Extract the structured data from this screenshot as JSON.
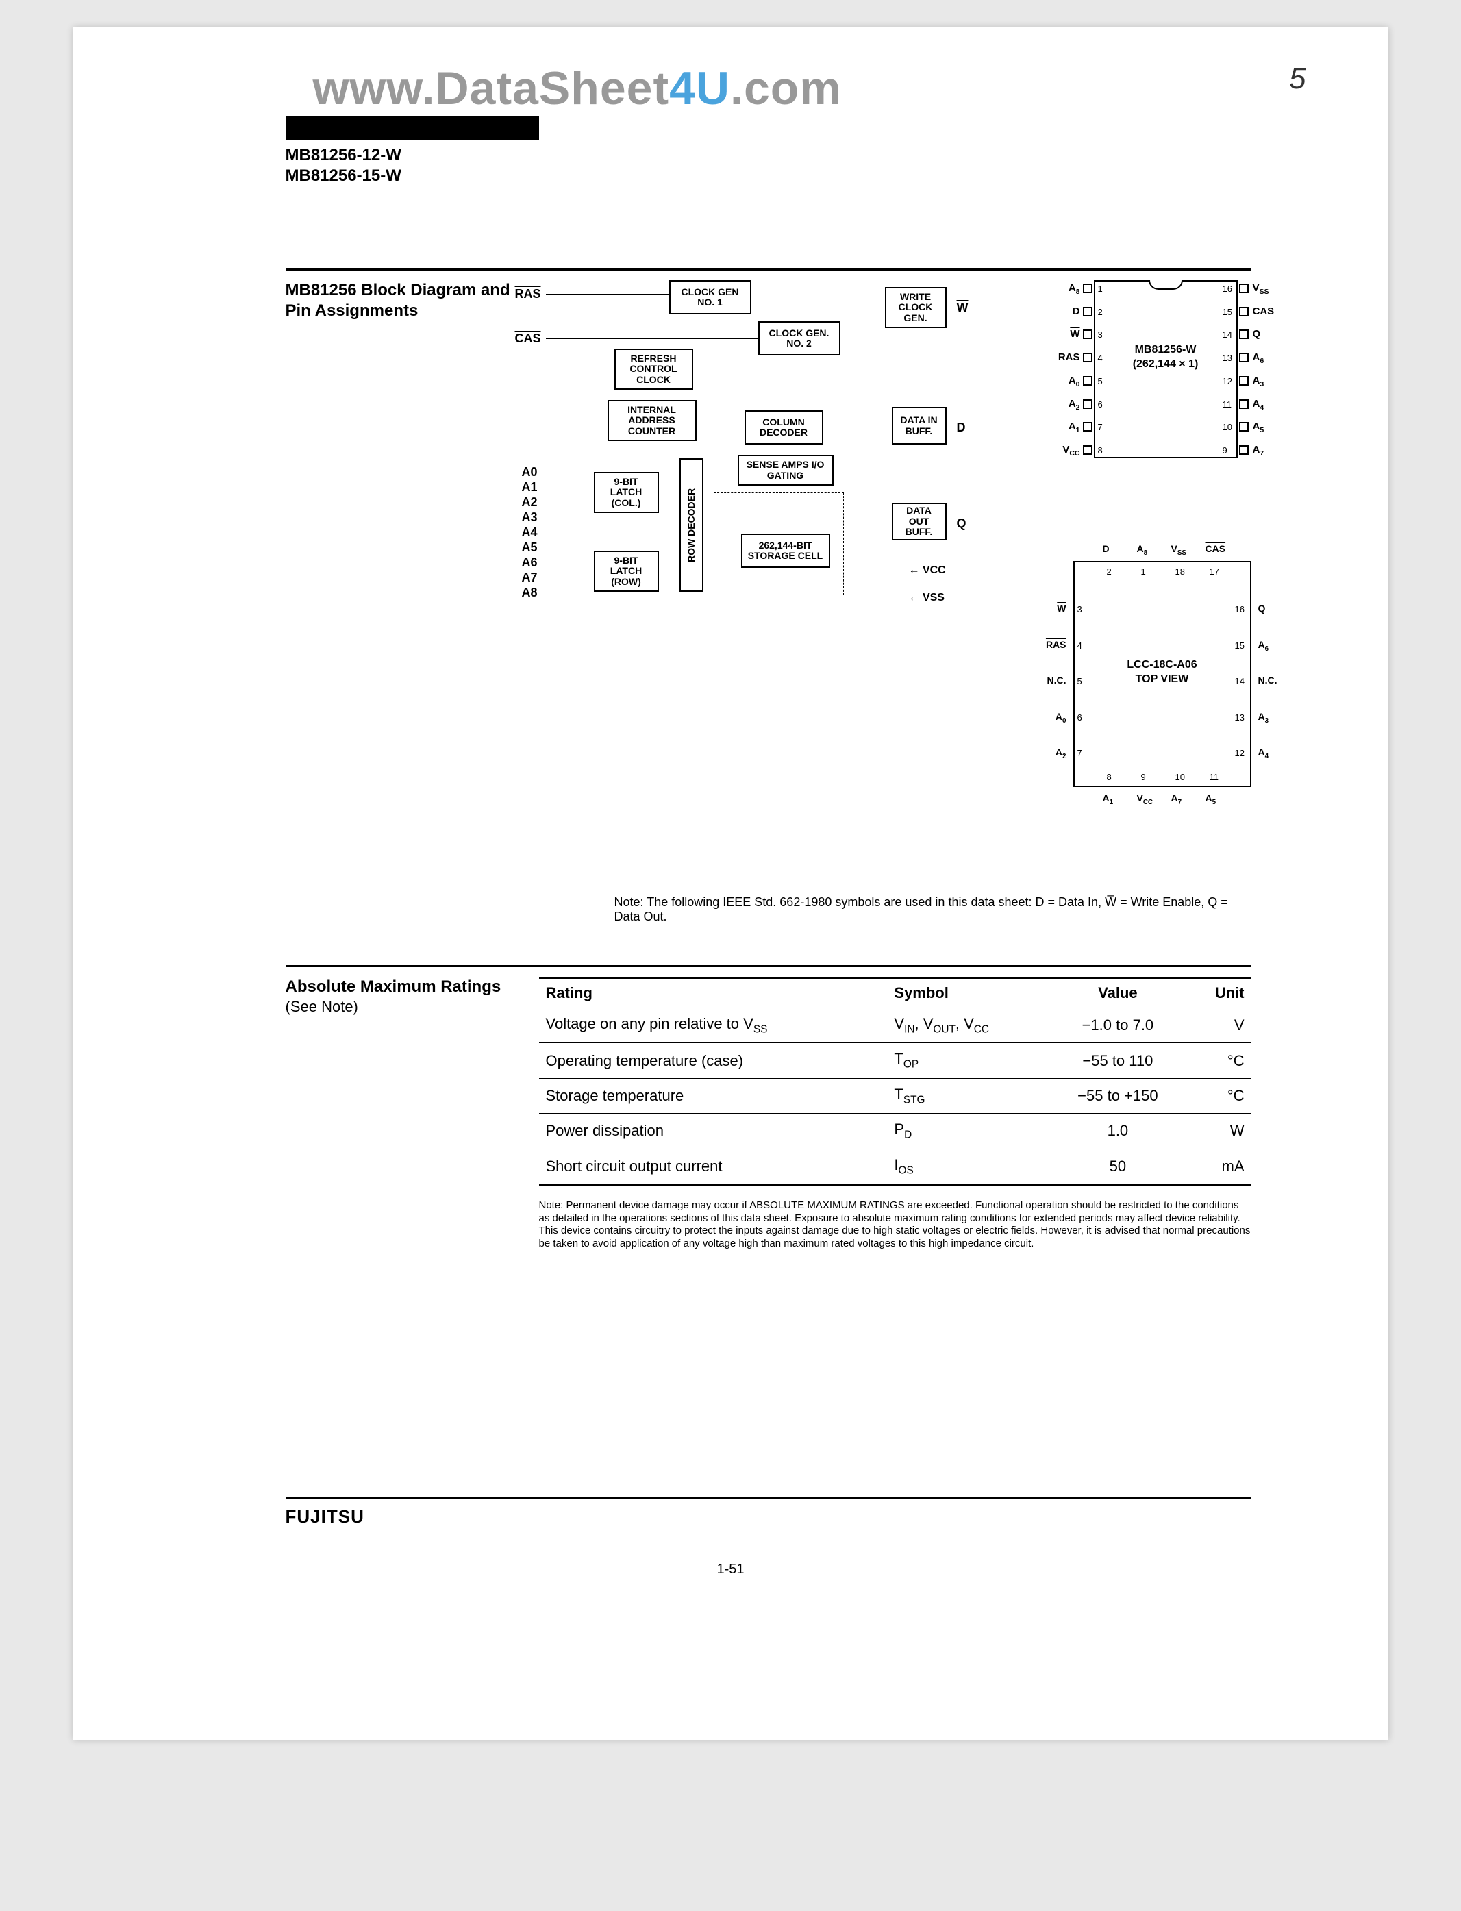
{
  "watermark": {
    "pre": "www.DataSheet",
    "mid": "4U",
    "post": ".com"
  },
  "page_corner": "5",
  "black_bar_text": "",
  "part_numbers": [
    "MB81256-12-W",
    "MB81256-15-W"
  ],
  "section1": {
    "title": "MB81256 Block Diagram and Pin Assignments",
    "blocks": {
      "clk1": "CLOCK GEN\nNO. 1",
      "clk2": "CLOCK GEN.\nNO. 2",
      "refresh": "REFRESH\nCONTROL\nCLOCK",
      "iac": "INTERNAL\nADDRESS\nCOUNTER",
      "latch_col": "9-BIT\nLATCH\n(COL.)",
      "latch_row": "9-BIT\nLATCH\n(ROW)",
      "row_dec": "ROW DECODER",
      "col_dec": "COLUMN\nDECODER",
      "sense": "SENSE AMPS\nI/O GATING",
      "storage": "262,144-BIT\nSTORAGE CELL",
      "write_clk": "WRITE\nCLOCK\nGEN.",
      "data_in": "DATA\nIN\nBUFF.",
      "data_out": "DATA\nOUT\nBUFF."
    },
    "signals": {
      "ras": "RAS",
      "cas": "CAS",
      "w": "W",
      "d": "D",
      "q": "Q",
      "vcc": "VCC",
      "vss": "VSS",
      "addr": [
        "A0",
        "A1",
        "A2",
        "A3",
        "A4",
        "A5",
        "A6",
        "A7",
        "A8"
      ]
    },
    "dip": {
      "label_top": "MB81256-W",
      "label_bottom": "(262,144 × 1)",
      "left_pins": [
        "A8",
        "D",
        "W",
        "RAS",
        "A0",
        "A2",
        "A1",
        "VCC"
      ],
      "left_nums": [
        1,
        2,
        3,
        4,
        5,
        6,
        7,
        8
      ],
      "right_pins": [
        "VSS",
        "CAS",
        "Q",
        "A6",
        "A3",
        "A4",
        "A5",
        "A7"
      ],
      "right_nums": [
        16,
        15,
        14,
        13,
        12,
        11,
        10,
        9
      ]
    },
    "lcc": {
      "label_top": "LCC-18C-A06",
      "label_bottom": "TOP VIEW",
      "top_pins": [
        "D",
        "A8",
        "VSS",
        "CAS"
      ],
      "top_nums": [
        2,
        1,
        18,
        17
      ],
      "left_pins": [
        "W",
        "RAS",
        "N.C.",
        "A0",
        "A2"
      ],
      "left_nums": [
        3,
        4,
        5,
        6,
        7
      ],
      "right_pins": [
        "Q",
        "A6",
        "N.C.",
        "A3",
        "A4"
      ],
      "right_nums": [
        16,
        15,
        14,
        13,
        12
      ],
      "bottom_pins": [
        "A1",
        "VCC",
        "A7",
        "A5"
      ],
      "bottom_nums": [
        8,
        9,
        10,
        11
      ]
    },
    "note": "Note: The following IEEE Std. 662-1980 symbols are used in this data sheet: D = Data In, W̅ = Write Enable, Q = Data Out."
  },
  "ratings": {
    "title": "Absolute Maximum Ratings",
    "subtitle": "(See Note)",
    "columns": [
      "Rating",
      "Symbol",
      "Value",
      "Unit"
    ],
    "rows": [
      {
        "rating": "Voltage on any pin relative to V",
        "rating_sub": "SS",
        "symbol": "V",
        "symbol_sub": "IN, VOUT, VCC",
        "symbol_text": "VIN, VOUT, VCC",
        "value": "−1.0 to 7.0",
        "unit": "V"
      },
      {
        "rating": "Operating temperature (case)",
        "symbol": "T",
        "symbol_sub": "OP",
        "value": "−55 to 110",
        "unit": "°C"
      },
      {
        "rating": "Storage temperature",
        "symbol": "T",
        "symbol_sub": "STG",
        "value": "−55 to +150",
        "unit": "°C"
      },
      {
        "rating": "Power dissipation",
        "symbol": "P",
        "symbol_sub": "D",
        "value": "1.0",
        "unit": "W"
      },
      {
        "rating": "Short circuit output current",
        "symbol": "I",
        "symbol_sub": "OS",
        "value": "50",
        "unit": "mA"
      }
    ],
    "note": "Note: Permanent device damage may occur if ABSOLUTE MAXIMUM RATINGS are exceeded. Functional operation should be restricted to the conditions as detailed in the operations sections of this data sheet. Exposure to absolute maximum rating conditions for extended periods may affect device reliability. This device contains circuitry to protect the inputs against damage due to high static voltages or electric fields. However, it is advised that normal precautions be taken to avoid application of any voltage high than maximum rated voltages to this high impedance circuit."
  },
  "footer": {
    "brand": "FUJITSU",
    "page": "1-51"
  }
}
